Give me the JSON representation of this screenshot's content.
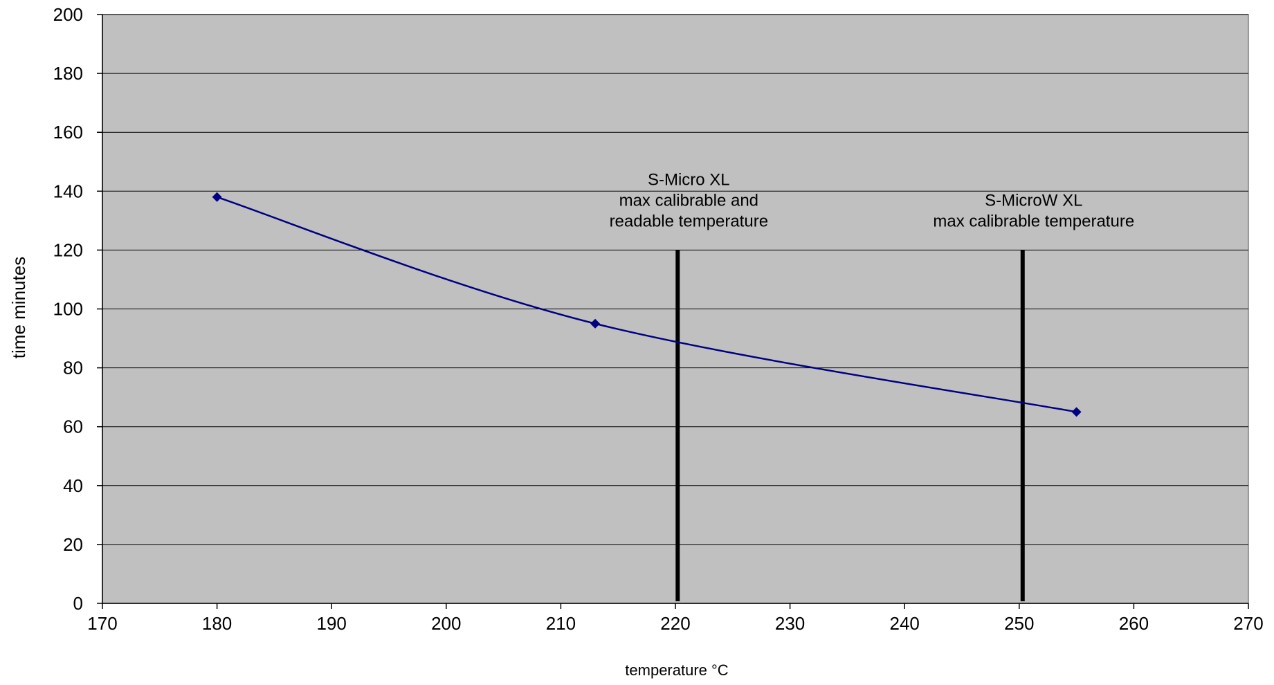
{
  "chart_data": {
    "type": "scatter",
    "title": "",
    "xlabel": "temperature °C",
    "ylabel": "time minutes",
    "xlim": [
      170,
      270
    ],
    "ylim": [
      0,
      200
    ],
    "xticks": [
      170,
      180,
      190,
      200,
      210,
      220,
      230,
      240,
      250,
      260,
      270
    ],
    "yticks": [
      0,
      20,
      40,
      60,
      80,
      100,
      120,
      140,
      160,
      180,
      200
    ],
    "grid": true,
    "legend": "none",
    "series": [
      {
        "x": [
          180,
          213,
          255
        ],
        "y": [
          138,
          95,
          65
        ],
        "color": "#000080",
        "marker": "diamond",
        "line": "smooth"
      }
    ],
    "annotations": [
      {
        "x": 220.2,
        "y_top": 120,
        "y_bottom": 0,
        "lines": [
          "S-Micro XL",
          "max calibrable and",
          "readable temperature"
        ],
        "color": "#000000"
      },
      {
        "x": 250.3,
        "y_top": 120,
        "y_bottom": 0,
        "lines": [
          "S-MicroW XL",
          "max calibrable temperature"
        ],
        "color": "#000000"
      }
    ],
    "plot_background": "#c0c0c0",
    "gridline_color": "#000000"
  }
}
